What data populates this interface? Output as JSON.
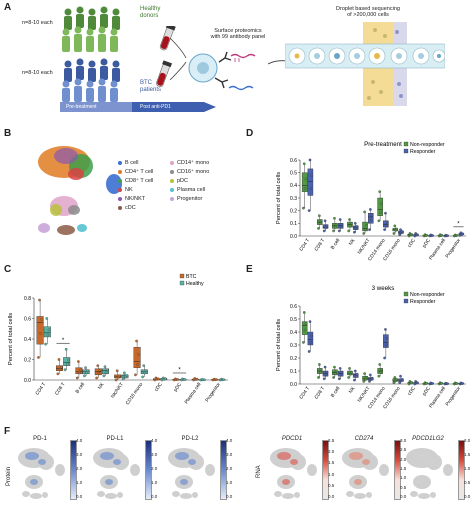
{
  "colors": {
    "btc": "#c8692a",
    "healthy": "#58b3a4",
    "nonresponder": "#4f9a43",
    "responder": "#4a63b0"
  },
  "panelA": {
    "letter": "A",
    "n_top": "n=8-10 each",
    "n_bottom": "n=8-10 each",
    "healthy_donors": [
      "Healthy",
      "donors"
    ],
    "btc_patients": [
      "BTC",
      "patients"
    ],
    "pre_treatment": "Pre-treatment",
    "post_pd1": "Post anti-PD1",
    "proteomics": [
      "Surface proteomics",
      "with 99 antibody panel"
    ],
    "droplet": [
      "Droplet based sequencing",
      "of >200,000 cells"
    ]
  },
  "panelB": {
    "letter": "B",
    "legend_col1": [
      {
        "label": "B cell",
        "color": "#3a6fd0"
      },
      {
        "label": "CD4⁺ T cell",
        "color": "#e07b22"
      },
      {
        "label": "CD8⁺ T cell",
        "color": "#3ea04a"
      },
      {
        "label": "NK",
        "color": "#d94343"
      },
      {
        "label": "NK/NKT",
        "color": "#8a58b0"
      },
      {
        "label": "cDC",
        "color": "#8a5a44"
      }
    ],
    "legend_col2": [
      {
        "label": "CD14⁺ mono",
        "color": "#e0a3c8"
      },
      {
        "label": "CD16⁺ mono",
        "color": "#8c8c8c"
      },
      {
        "label": "pDC",
        "color": "#b8c23c"
      },
      {
        "label": "Plasma cell",
        "color": "#56c1cf"
      },
      {
        "label": "Progenitor",
        "color": "#c8a4d8"
      }
    ]
  },
  "panelF": {
    "letter": "F",
    "protein_label": "Protein",
    "rna_label": "RNA",
    "protein_titles": [
      "PD-1",
      "PD-L1",
      "PD-L2"
    ],
    "rna_titles": [
      "PDCD1",
      "CD274",
      "PDCD1LG2"
    ],
    "protein_ticks": [
      "4.0",
      "3.0",
      "2.0",
      "1.0",
      "0.0"
    ],
    "rna_ticks": [
      [
        "2.5",
        "2.0",
        "1.5",
        "1.0",
        "0.5",
        "0.0"
      ],
      [
        "3.0",
        "2.5",
        "2.0",
        "1.5",
        "1.0",
        "0.5",
        "0.0"
      ],
      [
        "2.0",
        "1.5",
        "1.0",
        "0.5",
        "0.0"
      ]
    ]
  },
  "chart_data": [
    {
      "panel": "C",
      "type": "box",
      "title": "",
      "ylabel": "Percent of total cells",
      "ylim": [
        0,
        0.8
      ],
      "yticks": [
        "0.0",
        "0.2",
        "0.4",
        "0.6",
        "0.8"
      ],
      "categories": [
        "CD4 T",
        "CD8 T",
        "B cell",
        "NK",
        "NK/NKT",
        "CD16 mono",
        "cDC",
        "pDC",
        "Plasma cell",
        "Progenitor"
      ],
      "legend": [
        "BTC",
        "Healthy"
      ],
      "significance": [
        1,
        7
      ],
      "series": [
        {
          "name": "BTC",
          "color": "#c8692a",
          "boxes": [
            [
              0.22,
              0.35,
              0.56,
              0.62,
              0.78
            ],
            [
              0.06,
              0.09,
              0.11,
              0.14,
              0.2
            ],
            [
              0.02,
              0.06,
              0.08,
              0.12,
              0.18
            ],
            [
              0.02,
              0.05,
              0.08,
              0.11,
              0.14
            ],
            [
              0.0,
              0.02,
              0.03,
              0.05,
              0.09
            ],
            [
              0.05,
              0.12,
              0.18,
              0.32,
              0.38
            ],
            [
              0.0,
              0.005,
              0.01,
              0.012,
              0.02
            ],
            [
              0.0,
              0.002,
              0.004,
              0.006,
              0.01
            ],
            [
              0.0,
              0.003,
              0.006,
              0.009,
              0.015
            ],
            [
              0.0,
              0.002,
              0.003,
              0.005,
              0.008
            ]
          ]
        },
        {
          "name": "Healthy",
          "color": "#58b3a4",
          "boxes": [
            [
              0.35,
              0.42,
              0.46,
              0.52,
              0.6
            ],
            [
              0.1,
              0.14,
              0.17,
              0.22,
              0.3
            ],
            [
              0.04,
              0.06,
              0.08,
              0.1,
              0.12
            ],
            [
              0.04,
              0.06,
              0.09,
              0.11,
              0.13
            ],
            [
              0.01,
              0.02,
              0.04,
              0.05,
              0.07
            ],
            [
              0.03,
              0.06,
              0.08,
              0.1,
              0.14
            ],
            [
              0.0,
              0.005,
              0.01,
              0.015,
              0.02
            ],
            [
              0.0,
              0.002,
              0.004,
              0.006,
              0.01
            ],
            [
              0.0,
              0.001,
              0.002,
              0.003,
              0.005
            ],
            [
              0.0,
              0.002,
              0.003,
              0.005,
              0.008
            ]
          ]
        }
      ]
    },
    {
      "panel": "D",
      "type": "box",
      "title": "Pre-treatment",
      "ylabel": "Percent of total cells",
      "ylim": [
        0,
        0.6
      ],
      "yticks": [
        "0.0",
        "0.1",
        "0.2",
        "0.3",
        "0.4",
        "0.5",
        "0.6"
      ],
      "categories": [
        "CD4 T",
        "CD8 T",
        "B cell",
        "NK",
        "NK/NKT",
        "CD14 mono",
        "CD16 mono",
        "cDC",
        "pDC",
        "Plasma cell",
        "Progenitor"
      ],
      "legend": [
        "Non-responder",
        "Responder"
      ],
      "significance": [
        10
      ],
      "series": [
        {
          "name": "Non-responder",
          "color": "#4f9a43",
          "boxes": [
            [
              0.22,
              0.35,
              0.4,
              0.5,
              0.57
            ],
            [
              0.06,
              0.09,
              0.11,
              0.13,
              0.16
            ],
            [
              0.04,
              0.06,
              0.08,
              0.1,
              0.14
            ],
            [
              0.04,
              0.07,
              0.09,
              0.11,
              0.13
            ],
            [
              0.02,
              0.04,
              0.06,
              0.11,
              0.19
            ],
            [
              0.12,
              0.16,
              0.21,
              0.3,
              0.35
            ],
            [
              0.02,
              0.04,
              0.05,
              0.06,
              0.08
            ],
            [
              0.0,
              0.005,
              0.01,
              0.014,
              0.02
            ],
            [
              0.0,
              0.002,
              0.004,
              0.006,
              0.01
            ],
            [
              0.0,
              0.002,
              0.004,
              0.006,
              0.01
            ],
            [
              0.0,
              0.002,
              0.003,
              0.005,
              0.008
            ]
          ]
        },
        {
          "name": "Responder",
          "color": "#4a63b0",
          "boxes": [
            [
              0.2,
              0.32,
              0.43,
              0.53,
              0.6
            ],
            [
              0.04,
              0.06,
              0.07,
              0.09,
              0.12
            ],
            [
              0.04,
              0.06,
              0.08,
              0.1,
              0.13
            ],
            [
              0.03,
              0.05,
              0.07,
              0.08,
              0.1
            ],
            [
              0.05,
              0.1,
              0.15,
              0.18,
              0.21
            ],
            [
              0.05,
              0.07,
              0.09,
              0.12,
              0.18
            ],
            [
              0.01,
              0.02,
              0.03,
              0.04,
              0.05
            ],
            [
              0.0,
              0.005,
              0.008,
              0.012,
              0.02
            ],
            [
              0.0,
              0.002,
              0.003,
              0.005,
              0.008
            ],
            [
              0.0,
              0.001,
              0.002,
              0.003,
              0.006
            ],
            [
              0.005,
              0.01,
              0.015,
              0.02,
              0.025
            ]
          ]
        }
      ]
    },
    {
      "panel": "E",
      "type": "box",
      "title": "3 weeks",
      "ylabel": "Percent of total cells",
      "ylim": [
        0,
        0.6
      ],
      "yticks": [
        "0.0",
        "0.1",
        "0.2",
        "0.3",
        "0.4",
        "0.5",
        "0.6"
      ],
      "categories": [
        "CD4 T",
        "CD8 T",
        "B cell",
        "NK",
        "NK/NKT",
        "CD14 mono",
        "CD16 mono",
        "cDC",
        "pDC",
        "Plasma cell",
        "Progenitor"
      ],
      "legend": [
        "Non-responder",
        "Responder"
      ],
      "significance": [],
      "series": [
        {
          "name": "Non-responder",
          "color": "#4f9a43",
          "boxes": [
            [
              0.32,
              0.38,
              0.45,
              0.48,
              0.55
            ],
            [
              0.05,
              0.08,
              0.1,
              0.12,
              0.15
            ],
            [
              0.05,
              0.07,
              0.09,
              0.11,
              0.13
            ],
            [
              0.05,
              0.07,
              0.08,
              0.1,
              0.12
            ],
            [
              0.02,
              0.03,
              0.04,
              0.06,
              0.08
            ],
            [
              0.06,
              0.08,
              0.1,
              0.12,
              0.15
            ],
            [
              0.01,
              0.02,
              0.03,
              0.04,
              0.05
            ],
            [
              0.0,
              0.005,
              0.01,
              0.012,
              0.02
            ],
            [
              0.0,
              0.002,
              0.004,
              0.006,
              0.01
            ],
            [
              0.0,
              0.002,
              0.004,
              0.006,
              0.01
            ],
            [
              0.0,
              0.002,
              0.003,
              0.005,
              0.008
            ]
          ]
        },
        {
          "name": "Responder",
          "color": "#4a63b0",
          "boxes": [
            [
              0.25,
              0.3,
              0.34,
              0.4,
              0.48
            ],
            [
              0.04,
              0.06,
              0.08,
              0.1,
              0.13
            ],
            [
              0.04,
              0.06,
              0.08,
              0.1,
              0.12
            ],
            [
              0.03,
              0.05,
              0.07,
              0.08,
              0.1
            ],
            [
              0.02,
              0.03,
              0.04,
              0.05,
              0.07
            ],
            [
              0.2,
              0.28,
              0.32,
              0.38,
              0.42
            ],
            [
              0.01,
              0.02,
              0.03,
              0.04,
              0.06
            ],
            [
              0.0,
              0.005,
              0.008,
              0.012,
              0.02
            ],
            [
              0.0,
              0.002,
              0.003,
              0.005,
              0.008
            ],
            [
              0.0,
              0.001,
              0.002,
              0.003,
              0.006
            ],
            [
              0.0,
              0.002,
              0.003,
              0.005,
              0.008
            ]
          ]
        }
      ]
    }
  ]
}
